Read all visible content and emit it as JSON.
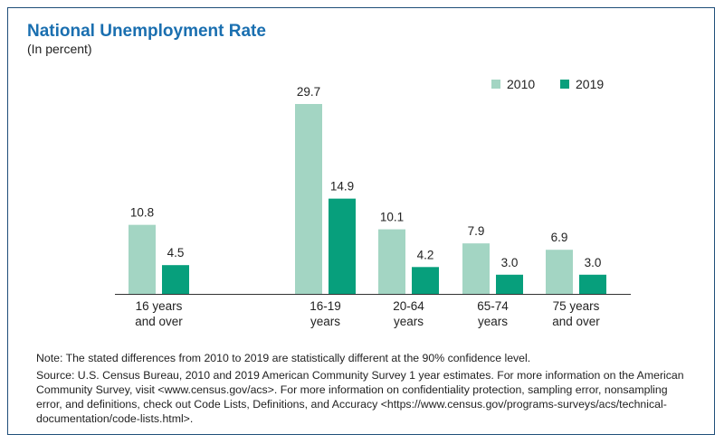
{
  "chart_data": {
    "type": "bar",
    "title": "National Unemployment Rate",
    "subtitle": "(In percent)",
    "categories": [
      [
        "16 years",
        "and over"
      ],
      [
        "16-19",
        "years"
      ],
      [
        "20-64",
        "years"
      ],
      [
        "65-74",
        "years"
      ],
      [
        "75 years",
        "and over"
      ]
    ],
    "series": [
      {
        "name": "2010",
        "values": [
          10.8,
          29.7,
          10.1,
          7.9,
          6.9
        ],
        "color": "#a3d5c3"
      },
      {
        "name": "2019",
        "values": [
          4.5,
          14.9,
          4.2,
          3.0,
          3.0
        ],
        "color": "#079f7c"
      }
    ],
    "ylim": [
      0,
      29.7
    ],
    "grid": false,
    "legend": "top-right"
  },
  "notes": {
    "note": "Note: The stated differences from 2010 to 2019 are statistically different at the 90% confidence level.",
    "source": "Source: U.S. Census Bureau, 2010 and 2019 American Community Survey 1 year estimates. For more information on the American Community Survey, visit <www.census.gov/acs>. For more information on confidentiality protection, sampling error, nonsampling error, and definitions, check out Code Lists, Definitions, and Accuracy <https://www.census.gov/programs-surveys/acs/technical-documentation/code-lists.html>."
  }
}
